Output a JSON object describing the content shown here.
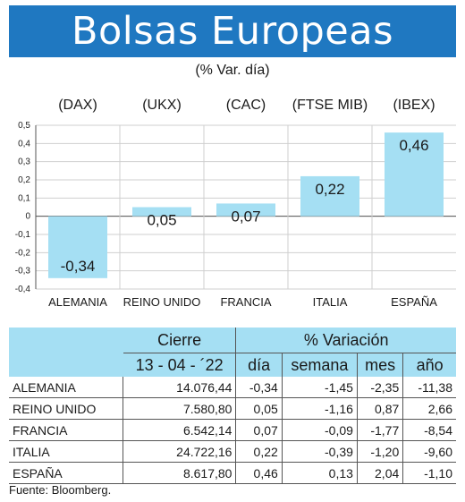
{
  "title": "Bolsas Europeas",
  "subtitle": "(% Var. día)",
  "chart_data": {
    "type": "bar",
    "categories": [
      "ALEMANIA",
      "REINO UNIDO",
      "FRANCIA",
      "ITALIA",
      "ESPAÑA"
    ],
    "indices": [
      "(DAX)",
      "(UKX)",
      "(CAC)",
      "(FTSE MIB)",
      "(IBEX)"
    ],
    "values": [
      -0.34,
      0.05,
      0.07,
      0.22,
      0.46
    ],
    "value_labels": [
      "-0,34",
      "0,05",
      "0,07",
      "0,22",
      "0,46"
    ],
    "ylim": [
      -0.4,
      0.5
    ],
    "yticks": [
      0.5,
      0.4,
      0.3,
      0.2,
      0.1,
      0,
      -0.1,
      -0.2,
      -0.3,
      -0.4
    ],
    "ytick_labels": [
      "0,5",
      "0,4",
      "0,3",
      "0,2",
      "0,1",
      "0",
      "-0,1",
      "-0,2",
      "-0,3",
      "-0,4"
    ],
    "bar_color": "#a5dff3",
    "title": "",
    "xlabel": "",
    "ylabel": ""
  },
  "table": {
    "group_headers": [
      "Cierre",
      "% Variación"
    ],
    "date": "13 - 04 - ´22",
    "columns": [
      "día",
      "semana",
      "mes",
      "año"
    ],
    "rows": [
      [
        "ALEMANIA",
        "14.076,44",
        "-0,34",
        "-1,45",
        "-2,35",
        "-11,38"
      ],
      [
        "REINO UNIDO",
        "7.580,80",
        "0,05",
        "-1,16",
        "0,87",
        "2,66"
      ],
      [
        "FRANCIA",
        "6.542,14",
        "0,07",
        "-0,09",
        "-1,77",
        "-8,54"
      ],
      [
        "ITALIA",
        "24.722,16",
        "0,22",
        "-0,39",
        "-1,20",
        "-9,60"
      ],
      [
        "ESPAÑA",
        "8.617,80",
        "0,46",
        "0,13",
        "2,04",
        "-1,10"
      ]
    ]
  },
  "source": "Fuente: Bloomberg.",
  "colors": {
    "banner": "#1f78c1",
    "table_header": "#a5dff3"
  }
}
